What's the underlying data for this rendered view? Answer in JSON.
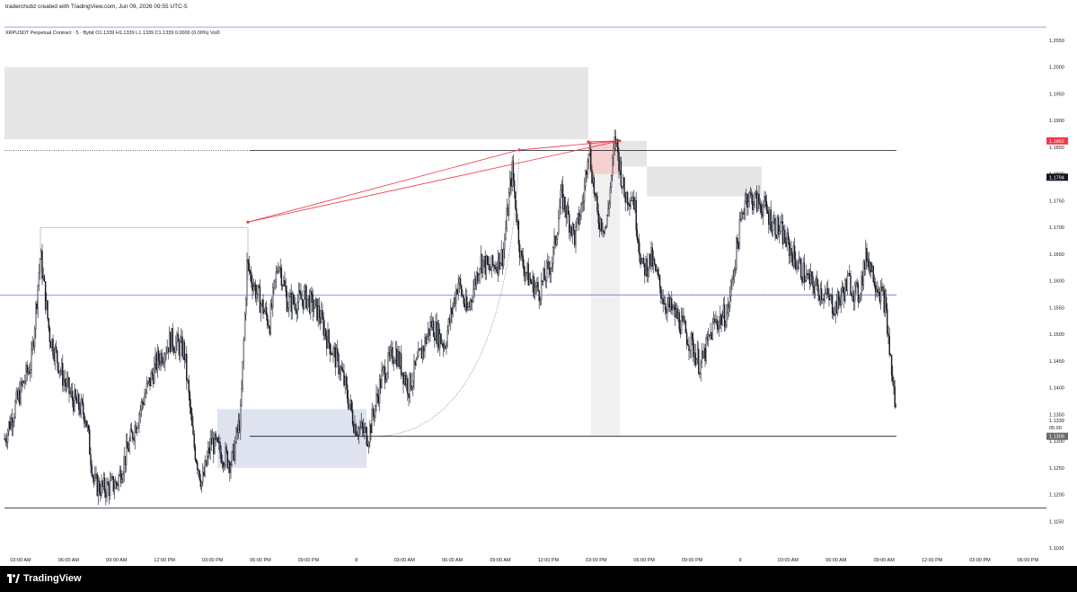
{
  "header": {
    "attribution": "traderchubz created with TradingView.com, Jun 09, 2026 09:55 UTC-5"
  },
  "legend": {
    "symbol": "XRPUSDT Perpetual Contract",
    "interval": "5",
    "exchange": "Bybit",
    "ohlc": "O1.1339 H1.1339 L1.1339 C1.1339 0.0000 (0.00%) Vol0"
  },
  "footer": {
    "brand": "TradingView"
  },
  "colors": {
    "background": "#ffffff",
    "candle": "#131722",
    "red_line": "#f23645",
    "blue_line": "#5b5fd6",
    "gray_zone": "#e6e6e6",
    "blue_zone": "#dfe3f0",
    "red_zone": "#f8c8c8"
  },
  "chart_data": {
    "type": "candlestick",
    "y_ticks": [
      "1.2050",
      "1.2000",
      "1.1950",
      "1.1900",
      "1.1850",
      "1.1800",
      "1.1750",
      "1.1700",
      "1.1650",
      "1.1600",
      "1.1550",
      "1.1500",
      "1.1450",
      "1.1400",
      "1.1350",
      "1.1300",
      "1.1250",
      "1.1200",
      "1.1150",
      "1.1100"
    ],
    "ylim": [
      1.11,
      1.21
    ],
    "x_ticks": [
      "03:00 AM",
      "06:00 AM",
      "09:00 AM",
      "12:00 PM",
      "03:00 PM",
      "06:00 PM",
      "09:00 PM",
      "8",
      "03:00 AM",
      "06:00 AM",
      "09:00 AM",
      "12:00 PM",
      "03:00 PM",
      "06:00 PM",
      "09:00 PM",
      "9",
      "03:00 AM",
      "06:00 AM",
      "09:00 AM",
      "12:00 PM",
      "03:00 PM",
      "06:00 PM"
    ],
    "price_labels": [
      {
        "text": "1.1862",
        "value": 1.1862,
        "style": "red"
      },
      {
        "text": "1.1794",
        "value": 1.1794,
        "style": "dark"
      },
      {
        "text": "1.1339",
        "value": 1.1339,
        "style": "plain"
      },
      {
        "text": "05:00",
        "value": 1.1325,
        "style": "plain"
      },
      {
        "text": "1.1309",
        "value": 1.1309,
        "style": "gray"
      }
    ],
    "path_x": [
      0,
      20,
      35,
      45,
      55,
      70,
      80,
      95,
      105,
      115,
      130,
      145,
      160,
      175,
      190,
      205,
      215,
      225,
      235,
      245,
      258,
      268,
      275,
      285,
      300,
      310,
      320,
      330,
      340,
      355,
      365,
      380,
      395,
      410,
      425,
      440,
      455,
      470,
      480,
      495,
      510,
      520,
      535,
      545,
      560,
      570,
      580,
      590,
      600,
      615,
      625,
      640,
      650,
      655,
      665,
      675,
      685,
      695,
      705,
      715,
      725,
      740,
      755,
      770,
      780,
      795,
      810,
      820,
      830,
      840,
      850,
      860,
      870,
      885,
      900,
      915,
      930,
      945,
      955,
      965,
      975,
      985,
      992,
      997,
      1000
    ],
    "path_y": [
      1.128,
      1.138,
      1.145,
      1.165,
      1.15,
      1.142,
      1.138,
      1.135,
      1.122,
      1.121,
      1.122,
      1.13,
      1.138,
      1.145,
      1.149,
      1.147,
      1.13,
      1.122,
      1.13,
      1.128,
      1.126,
      1.135,
      1.163,
      1.158,
      1.152,
      1.164,
      1.156,
      1.156,
      1.157,
      1.154,
      1.149,
      1.143,
      1.133,
      1.131,
      1.142,
      1.147,
      1.14,
      1.147,
      1.152,
      1.148,
      1.16,
      1.154,
      1.164,
      1.162,
      1.165,
      1.181,
      1.164,
      1.16,
      1.158,
      1.164,
      1.176,
      1.168,
      1.176,
      1.186,
      1.172,
      1.17,
      1.187,
      1.176,
      1.176,
      1.162,
      1.164,
      1.156,
      1.153,
      1.148,
      1.144,
      1.152,
      1.154,
      1.166,
      1.176,
      1.175,
      1.174,
      1.171,
      1.169,
      1.164,
      1.16,
      1.158,
      1.155,
      1.16,
      1.157,
      1.165,
      1.16,
      1.156,
      1.144,
      1.136,
      1.132
    ],
    "zones": {
      "upper_gray": {
        "from_x": 5,
        "to_x": 655,
        "top": 1.2,
        "bottom": 1.1865
      },
      "right_gray": {
        "from_x": 720,
        "to_x": 848,
        "top": 1.1814,
        "bottom": 1.1758
      },
      "small_gray": {
        "from_x": 690,
        "to_x": 720,
        "top": 1.1862,
        "bottom": 1.1814
      },
      "vertical_gray": {
        "from_x": 658,
        "to_x": 690,
        "top": 1.1862,
        "bottom": 1.1309
      },
      "red_box": {
        "from_x": 655,
        "to_x": 690,
        "top": 1.1862,
        "bottom": 1.18
      },
      "blue_box": {
        "from_x": 242,
        "to_x": 408,
        "top": 1.136,
        "bottom": 1.125
      }
    },
    "levels": {
      "top_black": {
        "from_x": 278,
        "to_x": 998,
        "value": 1.1844
      },
      "dotted_left": {
        "from_x": 5,
        "to_x": 278,
        "value": 1.1844
      },
      "blue_h": {
        "from_x": 0,
        "to_x": 998,
        "value": 1.1573
      },
      "bottom_black": {
        "from_x": 278,
        "to_x": 998,
        "value": 1.1309
      },
      "bottom_axis_line": {
        "from_x": 5,
        "to_x": 1165,
        "value": 1.1175
      },
      "purple_top": {
        "from_x": 5,
        "to_x": 1165,
        "value": 1.2075
      },
      "gray_left_h": {
        "from_x": 45,
        "to_x": 275,
        "value": 1.17
      }
    },
    "red_lines": [
      {
        "x1": 276,
        "y1": 1.171,
        "x2": 578,
        "y2": 1.1845
      },
      {
        "x1": 276,
        "y1": 1.171,
        "x2": 690,
        "y2": 1.1862
      },
      {
        "x1": 578,
        "y1": 1.1845,
        "x2": 690,
        "y2": 1.1862
      },
      {
        "x1": 655,
        "y1": 1.186,
        "x2": 690,
        "y2": 1.1862
      }
    ],
    "arc": {
      "x1": 410,
      "y1": 1.1309,
      "x2": 578,
      "y2": 1.183
    }
  }
}
